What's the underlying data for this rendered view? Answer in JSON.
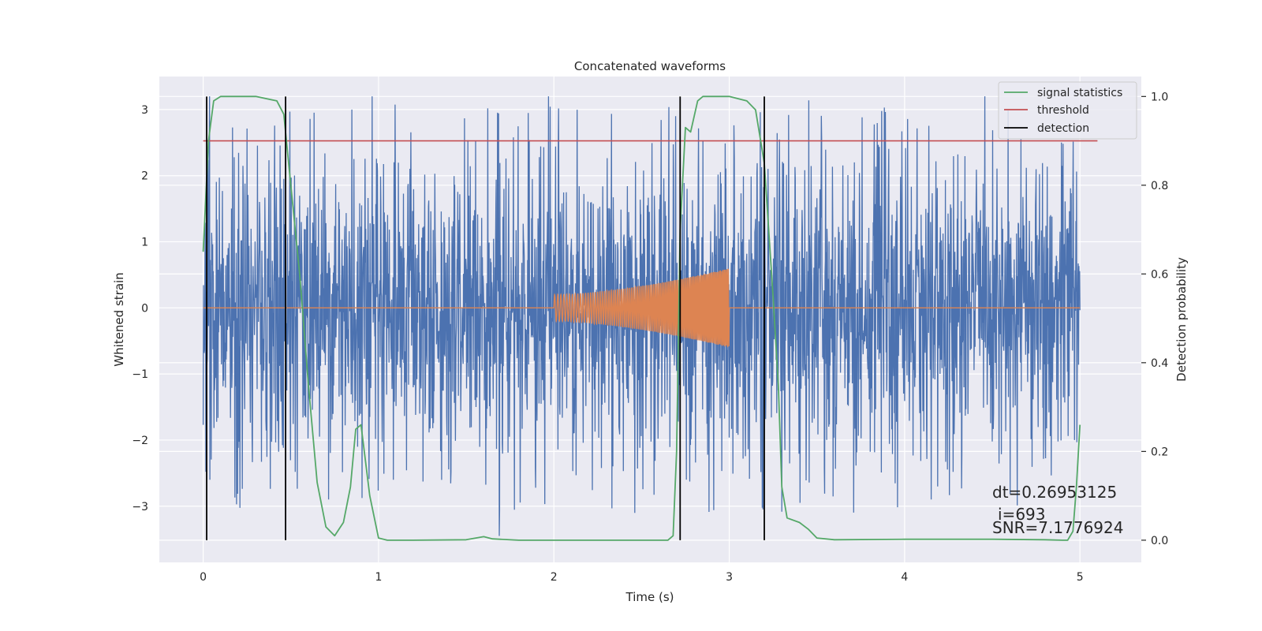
{
  "chart_data": {
    "type": "line",
    "title": "Concatenated waveforms",
    "xlabel": "Time (s)",
    "ylabel": "Whitened strain",
    "y2label": "Detection probability",
    "xlim": [
      -0.25,
      5.35
    ],
    "ylim": [
      -3.85,
      3.5
    ],
    "y2lim": [
      -0.05,
      1.045
    ],
    "xticks": [
      0,
      1,
      2,
      3,
      4,
      5
    ],
    "xtick_labels": [
      "0",
      "1",
      "2",
      "3",
      "4",
      "5"
    ],
    "yticks": [
      -3,
      -2,
      -1,
      0,
      1,
      2,
      3
    ],
    "ytick_labels": [
      "−3",
      "−2",
      "−1",
      "0",
      "1",
      "2",
      "3"
    ],
    "y2ticks": [
      0.0,
      0.2,
      0.4,
      0.6,
      0.8,
      1.0
    ],
    "y2tick_labels": [
      "0.0",
      "0.2",
      "0.4",
      "0.6",
      "0.8",
      "1.0"
    ],
    "grid": true,
    "legend_position": "top-right",
    "legend": [
      "signal statistics",
      "threshold",
      "detection"
    ],
    "colors": {
      "noise": "#4c72b0",
      "waveform": "#dd8452",
      "signal_statistics": "#55a868",
      "threshold": "#c44e52",
      "detection": "#000000",
      "plot_background": "#eaeaf2",
      "grid": "#ffffff"
    },
    "noise_series": {
      "x_range": [
        0,
        5
      ],
      "typical_amplitude": 0.85,
      "peak_amplitude": 3.2,
      "minimum": -3.45
    },
    "waveform_series": {
      "x_range": [
        2.0,
        3.0
      ],
      "start_amplitude": 0.2,
      "end_amplitude": 0.6,
      "zero_elsewhere_range": [
        0,
        5
      ]
    },
    "threshold": {
      "value": 0.9,
      "x_range": [
        0,
        5.1
      ]
    },
    "detections": [
      0.02,
      0.47,
      2.72,
      3.2
    ],
    "signal_statistics": {
      "x": [
        0.0,
        0.03,
        0.06,
        0.1,
        0.3,
        0.42,
        0.46,
        0.5,
        0.55,
        0.6,
        0.65,
        0.7,
        0.75,
        0.8,
        0.84,
        0.87,
        0.9,
        0.95,
        1.0,
        1.05,
        1.2,
        1.5,
        1.6,
        1.65,
        1.8,
        2.0,
        2.5,
        2.65,
        2.68,
        2.7,
        2.72,
        2.75,
        2.78,
        2.82,
        2.85,
        2.9,
        3.0,
        3.1,
        3.15,
        3.2,
        3.25,
        3.28,
        3.3,
        3.33,
        3.4,
        3.45,
        3.5,
        3.6,
        4.0,
        4.5,
        4.8,
        4.9,
        4.93,
        4.96,
        4.98,
        5.0
      ],
      "y": [
        0.65,
        0.9,
        0.99,
        1.0,
        1.0,
        0.99,
        0.96,
        0.8,
        0.6,
        0.35,
        0.13,
        0.03,
        0.01,
        0.04,
        0.12,
        0.25,
        0.26,
        0.1,
        0.005,
        0.0,
        0.0,
        0.001,
        0.008,
        0.003,
        0.0,
        0.0,
        0.0,
        0.0,
        0.01,
        0.2,
        0.7,
        0.93,
        0.92,
        0.99,
        1.0,
        1.0,
        1.0,
        0.99,
        0.97,
        0.85,
        0.55,
        0.35,
        0.12,
        0.05,
        0.04,
        0.025,
        0.005,
        0.001,
        0.002,
        0.002,
        0.001,
        0.0,
        0.0,
        0.02,
        0.12,
        0.26
      ]
    },
    "annotations": [
      "dt=0.26953125",
      "i=693",
      "SNR=7.1776924"
    ]
  }
}
